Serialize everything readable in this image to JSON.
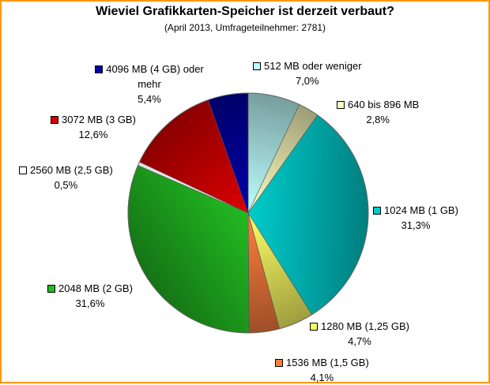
{
  "chart_data": {
    "type": "pie",
    "title": "Wieviel Grafikkarten-Speicher ist derzeit verbaut?",
    "subtitle": "(April 2013, Umfrageteilnehmer: 2781)",
    "slices": [
      {
        "label": "512 MB oder weniger",
        "pct_label": "7,0%",
        "value": 7.0,
        "color": "#bfffff"
      },
      {
        "label": "640 bis 896 MB",
        "pct_label": "2,8%",
        "value": 2.8,
        "color": "#ffffc0"
      },
      {
        "label": "1024 MB (1 GB)",
        "pct_label": "31,3%",
        "value": 31.3,
        "color": "#00cccc"
      },
      {
        "label": "1280 MB (1,25 GB)",
        "pct_label": "4,7%",
        "value": 4.7,
        "color": "#ffff66"
      },
      {
        "label": "1536 MB (1,5 GB)",
        "pct_label": "4,1%",
        "value": 4.1,
        "color": "#ff7f3f"
      },
      {
        "label": "2048 MB (2 GB)",
        "pct_label": "31,6%",
        "value": 31.6,
        "color": "#22bb22"
      },
      {
        "label": "2560 MB (2,5 GB)",
        "pct_label": "0,5%",
        "value": 0.5,
        "color": "#ffffff"
      },
      {
        "label": "3072 MB (3 GB)",
        "pct_label": "12,6%",
        "value": 12.6,
        "color": "#dd0000"
      },
      {
        "label": "4096 MB (4 GB) oder mehr",
        "pct_label": "5,4%",
        "value": 5.4,
        "color": "#0000aa"
      }
    ]
  }
}
